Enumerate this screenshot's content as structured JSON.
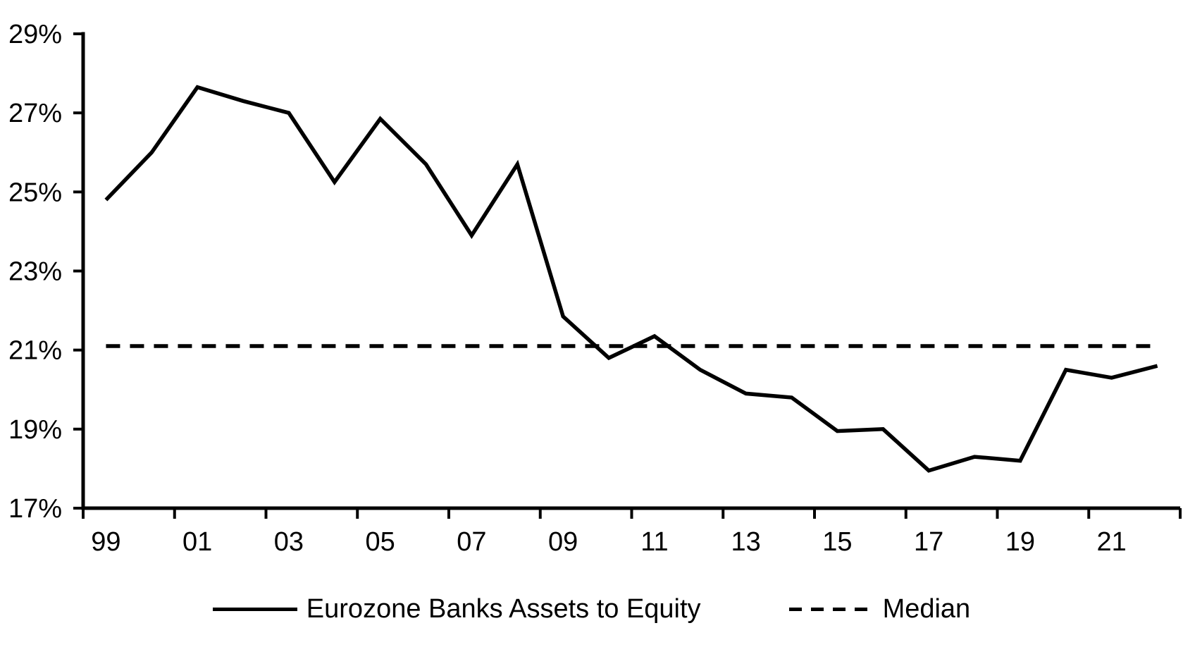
{
  "chart_data": {
    "type": "line",
    "title": "",
    "xlabel": "",
    "ylabel": "",
    "x": [
      1999,
      2000,
      2001,
      2002,
      2003,
      2004,
      2005,
      2006,
      2007,
      2008,
      2009,
      2010,
      2011,
      2012,
      2013,
      2014,
      2015,
      2016,
      2017,
      2018,
      2019,
      2020,
      2021,
      2022
    ],
    "x_tick_labels": [
      "99",
      "01",
      "03",
      "05",
      "07",
      "09",
      "11",
      "13",
      "15",
      "17",
      "19",
      "21"
    ],
    "x_label_interval": 2,
    "series": [
      {
        "name": "Eurozone Banks Assets to Equity",
        "style": "solid",
        "color": "#000000",
        "values": [
          24.8,
          26.0,
          27.65,
          27.3,
          27.0,
          25.25,
          26.85,
          25.7,
          23.9,
          25.7,
          21.85,
          20.8,
          21.35,
          20.5,
          19.9,
          19.8,
          18.95,
          19.0,
          17.95,
          18.3,
          18.2,
          20.5,
          20.3,
          20.6
        ]
      },
      {
        "name": "Median",
        "style": "dashed",
        "color": "#000000",
        "constant_value": 21.1
      }
    ],
    "ylim": [
      17,
      29
    ],
    "y_ticks": [
      17,
      19,
      21,
      23,
      25,
      27,
      29
    ],
    "y_tick_suffix": "%",
    "grid": false,
    "legend_position": "bottom"
  },
  "legend": {
    "series_label": "Eurozone Banks Assets to Equity",
    "median_label": "Median"
  },
  "colors": {
    "line": "#000000",
    "median": "#000000",
    "background": "#ffffff",
    "text": "#000000"
  }
}
